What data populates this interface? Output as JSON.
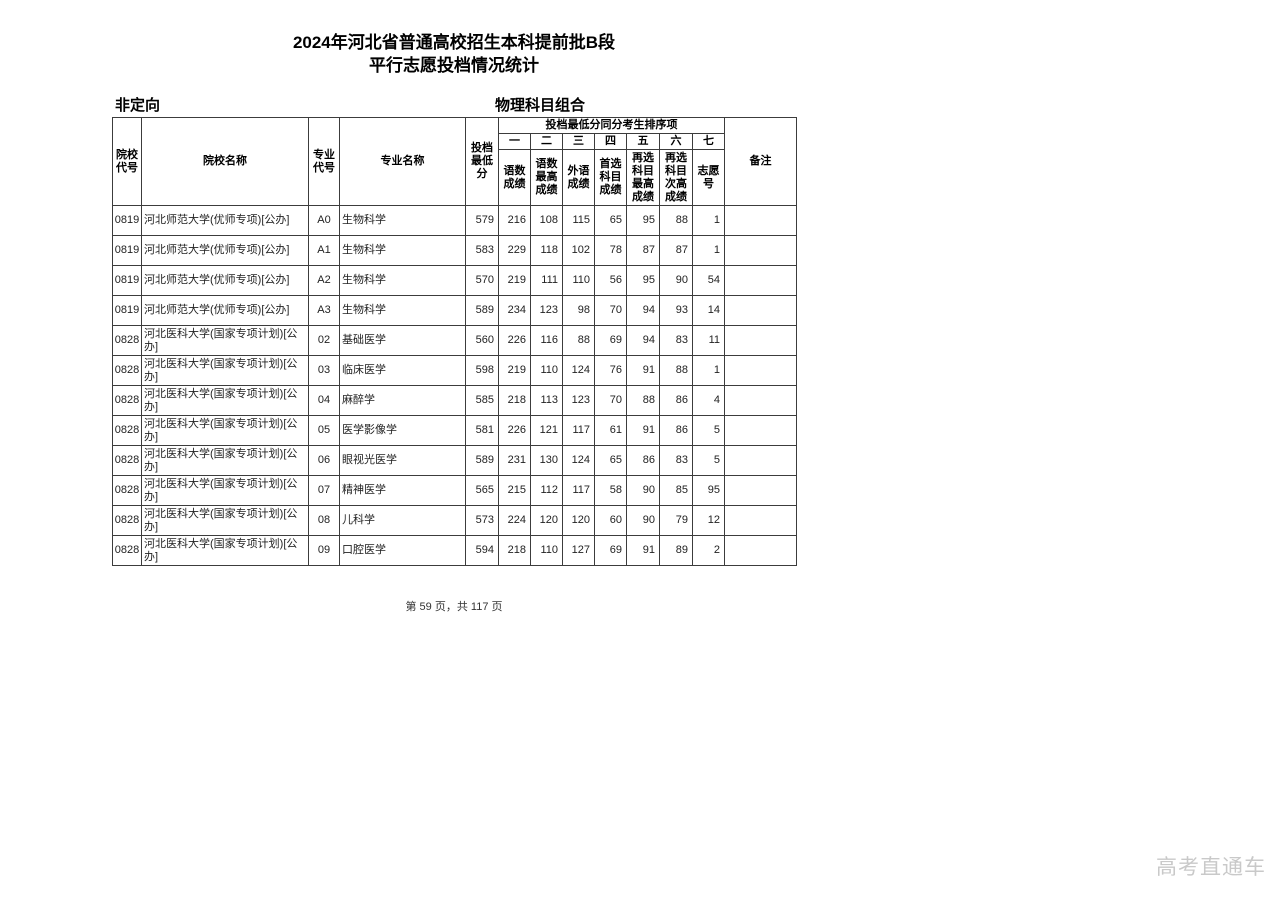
{
  "page": {
    "title_line1": "2024年河北省普通高校招生本科提前批B段",
    "title_line2": "平行志愿投档情况统计",
    "plan_type": "非定向",
    "subject_group": "物理科目组合",
    "footer": "第 59 页，共 117 页",
    "watermark": "高考直通车"
  },
  "table": {
    "group_header": "投档最低分同分考生排序项",
    "columns": {
      "college_code": "院校代号",
      "college_name": "院校名称",
      "major_code": "专业代号",
      "major_name": "专业名称",
      "min_score": "投档最低分",
      "remark": "备注"
    },
    "rank_numbers": [
      "一",
      "二",
      "三",
      "四",
      "五",
      "六",
      "七"
    ],
    "rank_labels": [
      "语数成绩",
      "语数最高成绩",
      "外语成绩",
      "首选科目成绩",
      "再选科目最高成绩",
      "再选科目次高成绩",
      "志愿号"
    ],
    "rows": [
      {
        "college_code": "0819",
        "college_name": "河北师范大学(优师专项)[公办]",
        "major_code": "A0",
        "major_name": "生物科学",
        "min_score": "579",
        "scores": [
          "216",
          "108",
          "115",
          "65",
          "95",
          "88",
          "1"
        ],
        "remark": ""
      },
      {
        "college_code": "0819",
        "college_name": "河北师范大学(优师专项)[公办]",
        "major_code": "A1",
        "major_name": "生物科学",
        "min_score": "583",
        "scores": [
          "229",
          "118",
          "102",
          "78",
          "87",
          "87",
          "1"
        ],
        "remark": ""
      },
      {
        "college_code": "0819",
        "college_name": "河北师范大学(优师专项)[公办]",
        "major_code": "A2",
        "major_name": "生物科学",
        "min_score": "570",
        "scores": [
          "219",
          "111",
          "110",
          "56",
          "95",
          "90",
          "54"
        ],
        "remark": ""
      },
      {
        "college_code": "0819",
        "college_name": "河北师范大学(优师专项)[公办]",
        "major_code": "A3",
        "major_name": "生物科学",
        "min_score": "589",
        "scores": [
          "234",
          "123",
          "98",
          "70",
          "94",
          "93",
          "14"
        ],
        "remark": ""
      },
      {
        "college_code": "0828",
        "college_name": "河北医科大学(国家专项计划)[公办]",
        "major_code": "02",
        "major_name": "基础医学",
        "min_score": "560",
        "scores": [
          "226",
          "116",
          "88",
          "69",
          "94",
          "83",
          "11"
        ],
        "remark": ""
      },
      {
        "college_code": "0828",
        "college_name": "河北医科大学(国家专项计划)[公办]",
        "major_code": "03",
        "major_name": "临床医学",
        "min_score": "598",
        "scores": [
          "219",
          "110",
          "124",
          "76",
          "91",
          "88",
          "1"
        ],
        "remark": ""
      },
      {
        "college_code": "0828",
        "college_name": "河北医科大学(国家专项计划)[公办]",
        "major_code": "04",
        "major_name": "麻醉学",
        "min_score": "585",
        "scores": [
          "218",
          "113",
          "123",
          "70",
          "88",
          "86",
          "4"
        ],
        "remark": ""
      },
      {
        "college_code": "0828",
        "college_name": "河北医科大学(国家专项计划)[公办]",
        "major_code": "05",
        "major_name": "医学影像学",
        "min_score": "581",
        "scores": [
          "226",
          "121",
          "117",
          "61",
          "91",
          "86",
          "5"
        ],
        "remark": ""
      },
      {
        "college_code": "0828",
        "college_name": "河北医科大学(国家专项计划)[公办]",
        "major_code": "06",
        "major_name": "眼视光医学",
        "min_score": "589",
        "scores": [
          "231",
          "130",
          "124",
          "65",
          "86",
          "83",
          "5"
        ],
        "remark": ""
      },
      {
        "college_code": "0828",
        "college_name": "河北医科大学(国家专项计划)[公办]",
        "major_code": "07",
        "major_name": "精神医学",
        "min_score": "565",
        "scores": [
          "215",
          "112",
          "117",
          "58",
          "90",
          "85",
          "95"
        ],
        "remark": ""
      },
      {
        "college_code": "0828",
        "college_name": "河北医科大学(国家专项计划)[公办]",
        "major_code": "08",
        "major_name": "儿科学",
        "min_score": "573",
        "scores": [
          "224",
          "120",
          "120",
          "60",
          "90",
          "79",
          "12"
        ],
        "remark": ""
      },
      {
        "college_code": "0828",
        "college_name": "河北医科大学(国家专项计划)[公办]",
        "major_code": "09",
        "major_name": "口腔医学",
        "min_score": "594",
        "scores": [
          "218",
          "110",
          "127",
          "69",
          "91",
          "89",
          "2"
        ],
        "remark": ""
      }
    ]
  }
}
